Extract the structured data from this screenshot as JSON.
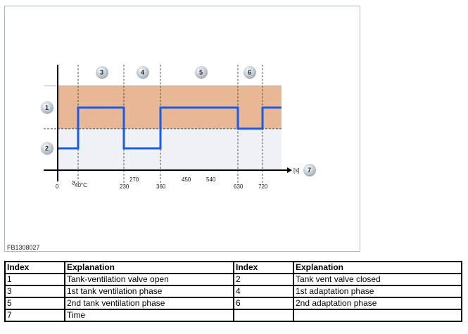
{
  "figure": {
    "reference": "FB1308027",
    "callouts": {
      "1": "1",
      "2": "2",
      "3": "3",
      "4": "4",
      "5": "5",
      "6": "6",
      "7": "7"
    },
    "axis_unit": "[s]",
    "tick_labels": {
      "t0": "0",
      "t40": "40°C",
      "t40sym": "ϑ",
      "t230": "230",
      "t270": "270",
      "t360": "360",
      "t450": "450",
      "t540": "540",
      "t630": "630",
      "t720": "720"
    },
    "colors": {
      "open_band": "#e8b896",
      "closed_band": "#eef2f7",
      "signal": "#1a5ce6"
    }
  },
  "table": {
    "headers": [
      "Index",
      "Explanation",
      "Index",
      "Explanation"
    ],
    "rows": [
      [
        "1",
        "Tank-ventilation valve open",
        "2",
        "Tank vent valve closed"
      ],
      [
        "3",
        "1st tank ventilation phase",
        "4",
        "1st adaptation phase"
      ],
      [
        "5",
        "2nd tank ventilation phase",
        "6",
        "2nd adaptation phase"
      ],
      [
        "7",
        "Time",
        "",
        ""
      ]
    ]
  }
}
